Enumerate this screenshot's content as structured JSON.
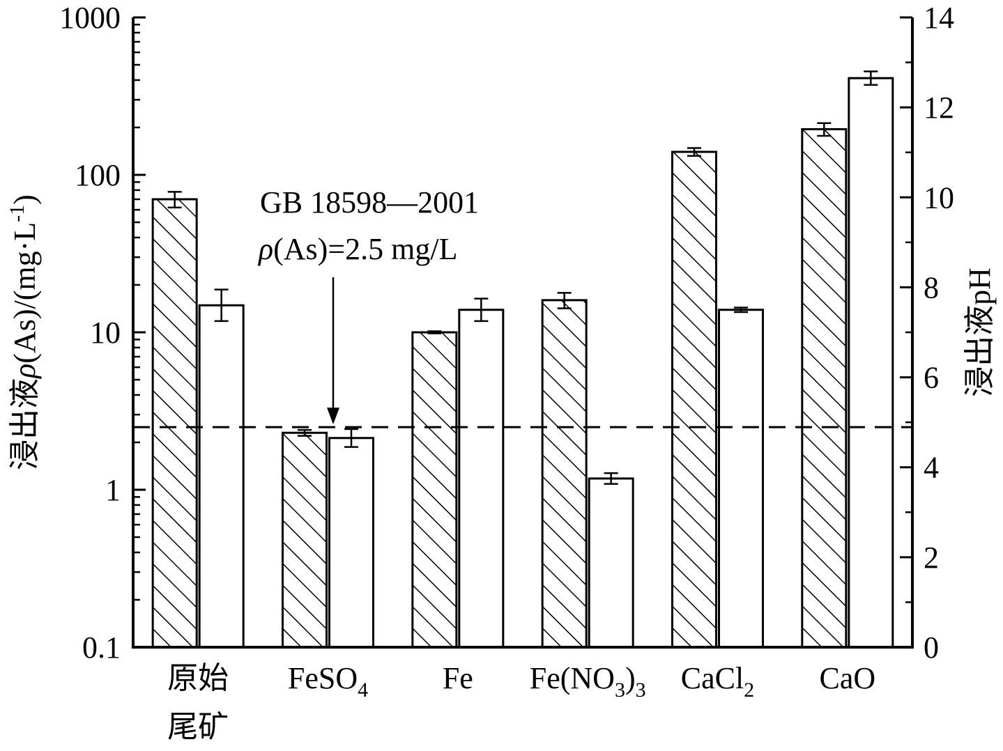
{
  "chart_data": {
    "type": "bar",
    "categories": [
      {
        "lines": [
          "原始",
          "尾矿"
        ]
      },
      {
        "lines": [
          "FeSO"
        ],
        "sub": "4"
      },
      {
        "lines": [
          "Fe"
        ]
      },
      {
        "lines": [
          "Fe(NO"
        ],
        "sub": "3",
        "tail": ")",
        "sub2": "3"
      },
      {
        "lines": [
          "CaCl"
        ],
        "sub": "2"
      },
      {
        "lines": [
          "CaO"
        ]
      }
    ],
    "series": [
      {
        "axis": "left",
        "fill": "hatch",
        "values": [
          70,
          2.3,
          10,
          16,
          140,
          195
        ],
        "errors": [
          8,
          0.1,
          0.15,
          1.8,
          8,
          18
        ]
      },
      {
        "axis": "right",
        "fill": "white",
        "values": [
          7.6,
          4.65,
          7.5,
          3.75,
          7.5,
          12.65
        ],
        "errors": [
          0.35,
          0.2,
          0.25,
          0.12,
          0.05,
          0.15
        ]
      }
    ],
    "y_left": {
      "scale": "log",
      "min": 0.1,
      "max": 1000,
      "ticks": [
        0.1,
        1,
        10,
        100,
        1000
      ],
      "tick_labels": [
        "0.1",
        "1",
        "10",
        "100",
        "1000"
      ],
      "label_main": "浸出液",
      "label_rho": "ρ",
      "label_rest": "(As)/(mg·L",
      "label_sup": "-1",
      "label_close": ")"
    },
    "y_right": {
      "scale": "linear",
      "min": 0,
      "max": 14,
      "ticks": [
        0,
        2,
        4,
        6,
        8,
        10,
        12,
        14
      ],
      "tick_labels": [
        "0",
        "2",
        "4",
        "6",
        "8",
        "10",
        "12",
        "14"
      ],
      "label": "浸出液pH"
    },
    "reference_line": {
      "value": 2.5,
      "axis": "left",
      "style": "dashed",
      "text_line1": "GB 18598—2001",
      "text_rho": "ρ",
      "text_line2": "(As)=2.5 mg/L"
    },
    "grid": false,
    "legend": "none"
  }
}
